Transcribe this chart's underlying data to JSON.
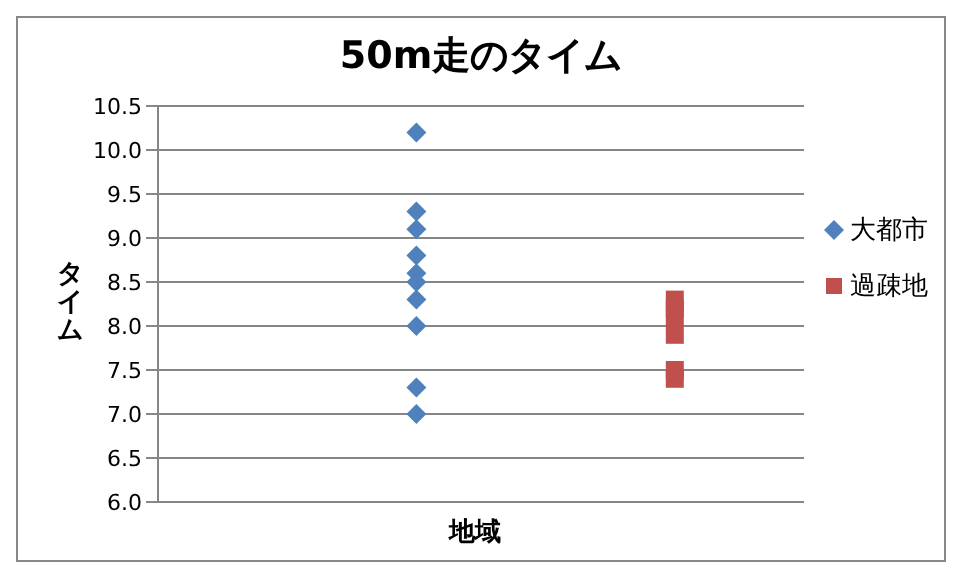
{
  "chart_data": {
    "type": "scatter",
    "title": "50m走のタイム",
    "xlabel": "地域",
    "ylabel": "タイム",
    "categories": [
      null,
      null
    ],
    "ylim": [
      6.0,
      10.5
    ],
    "yticks": [
      {
        "value": 6,
        "label": "6.0"
      },
      {
        "value": 6.5,
        "label": "6.5"
      },
      {
        "value": 7,
        "label": "7.0"
      },
      {
        "value": 7.5,
        "label": "7.5"
      },
      {
        "value": 8,
        "label": "8.0"
      },
      {
        "value": 8.5,
        "label": "8.5"
      },
      {
        "value": 9,
        "label": "9.0"
      },
      {
        "value": 9.5,
        "label": "9.5"
      },
      {
        "value": 10,
        "label": "10.0"
      },
      {
        "value": 10.5,
        "label": "10.5"
      }
    ],
    "tick_labels": "y",
    "grid": "y",
    "legend": "right",
    "series": [
      {
        "name": "大都市",
        "color": "#4f81bd",
        "marker": "diamond",
        "values": [
          10.2,
          null
        ]
      },
      {
        "color": "#4f81bd",
        "marker": "diamond",
        "values": [
          9.3,
          null
        ]
      },
      {
        "color": "#4f81bd",
        "marker": "diamond",
        "values": [
          9.1,
          null
        ]
      },
      {
        "color": "#4f81bd",
        "marker": "diamond",
        "values": [
          8.8,
          null
        ]
      },
      {
        "color": "#4f81bd",
        "marker": "diamond",
        "values": [
          8.6,
          null
        ]
      },
      {
        "color": "#4f81bd",
        "marker": "diamond",
        "values": [
          8.5,
          null
        ]
      },
      {
        "color": "#4f81bd",
        "marker": "diamond",
        "values": [
          8.3,
          null
        ]
      },
      {
        "color": "#4f81bd",
        "marker": "diamond",
        "values": [
          8.0,
          null
        ]
      },
      {
        "color": "#4f81bd",
        "marker": "diamond",
        "values": [
          7.3,
          null
        ]
      },
      {
        "color": "#4f81bd",
        "marker": "diamond",
        "values": [
          7.0,
          null
        ]
      },
      {
        "name": "過疎地",
        "color": "#c0504d",
        "marker": "square",
        "values": [
          null,
          8.3
        ]
      },
      {
        "color": "#c0504d",
        "marker": "square",
        "values": [
          null,
          8.2
        ]
      },
      {
        "color": "#c0504d",
        "marker": "square",
        "values": [
          null,
          8.1
        ]
      },
      {
        "color": "#c0504d",
        "marker": "square",
        "values": [
          null,
          7.9
        ]
      },
      {
        "color": "#c0504d",
        "marker": "square",
        "values": [
          null,
          7.5
        ]
      },
      {
        "color": "#c0504d",
        "marker": "square",
        "values": [
          null,
          7.4
        ]
      }
    ]
  }
}
